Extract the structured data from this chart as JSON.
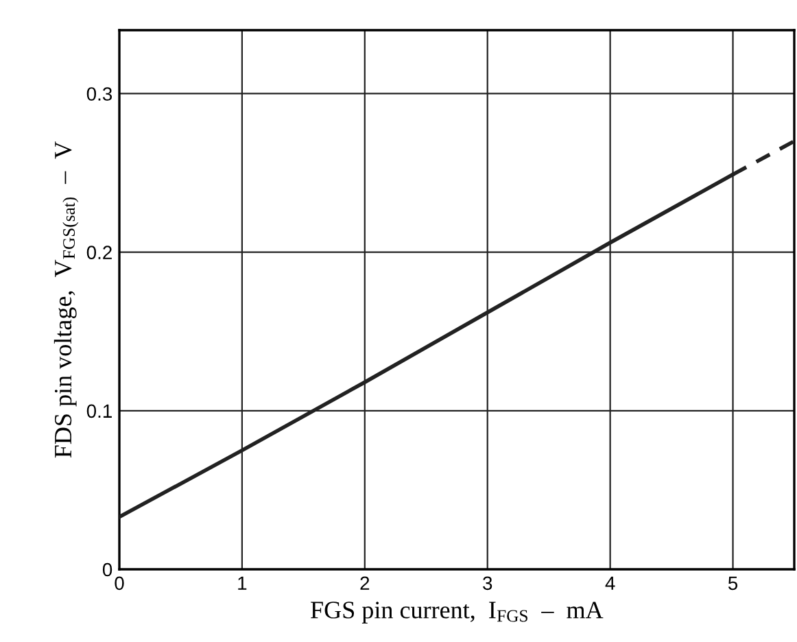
{
  "chart_data": {
    "type": "line",
    "xlabel": "FGS pin current,  I$_{FGS}$  –  mA",
    "ylabel": "FDS pin voltage,  V$_{FGS(sat)}$  –  V",
    "series": [
      {
        "color": "#222222",
        "line_style": "solid",
        "x": [
          0,
          1,
          2,
          3,
          4,
          5
        ],
        "values": [
          0.033,
          0.075,
          0.118,
          0.162,
          0.206,
          0.249
        ]
      },
      {
        "color": "#222222",
        "line_style": "dashed",
        "x": [
          5,
          5.5
        ],
        "values": [
          0.249,
          0.27
        ]
      }
    ],
    "xlim": [
      0,
      5.5
    ],
    "ylim": [
      0,
      0.34
    ],
    "xticks": [
      0,
      1,
      2,
      3,
      4,
      5
    ],
    "yticks": [
      0,
      0.1,
      0.2,
      0.3
    ],
    "grid": true,
    "marker": "none"
  }
}
